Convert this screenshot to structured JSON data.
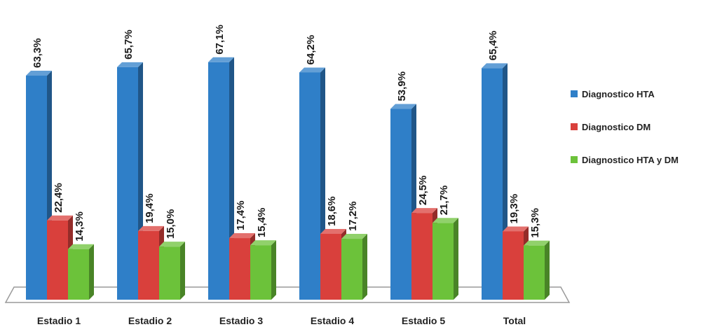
{
  "chart_data": {
    "type": "bar",
    "categories": [
      "Estadio 1",
      "Estadio 2",
      "Estadio 3",
      "Estadio 4",
      "Estadio 5",
      "Total"
    ],
    "series": [
      {
        "name": "Diagnostico HTA",
        "color": "#2f7fc8",
        "values": [
          63.3,
          65.7,
          67.1,
          64.2,
          53.9,
          65.4
        ],
        "labels": [
          "63,3%",
          "65,7%",
          "67,1%",
          "64,2%",
          "53,9%",
          "65,4%"
        ]
      },
      {
        "name": "Diagnostico DM",
        "color": "#d9403c",
        "values": [
          22.4,
          19.4,
          17.4,
          18.6,
          24.5,
          19.3
        ],
        "labels": [
          "22,4%",
          "19,4%",
          "17,4%",
          "18,6%",
          "24,5%",
          "19,3%"
        ]
      },
      {
        "name": "Diagnostico HTA y DM",
        "color": "#6cc23a",
        "values": [
          14.3,
          15.0,
          15.4,
          17.2,
          21.7,
          15.3
        ],
        "labels": [
          "14,3%",
          "15,0%",
          "15,4%",
          "17,2%",
          "21,7%",
          "15,3%"
        ]
      }
    ],
    "title": "",
    "xlabel": "",
    "ylabel": "",
    "ylim": [
      0,
      70
    ],
    "grid": false,
    "legend": "right"
  }
}
